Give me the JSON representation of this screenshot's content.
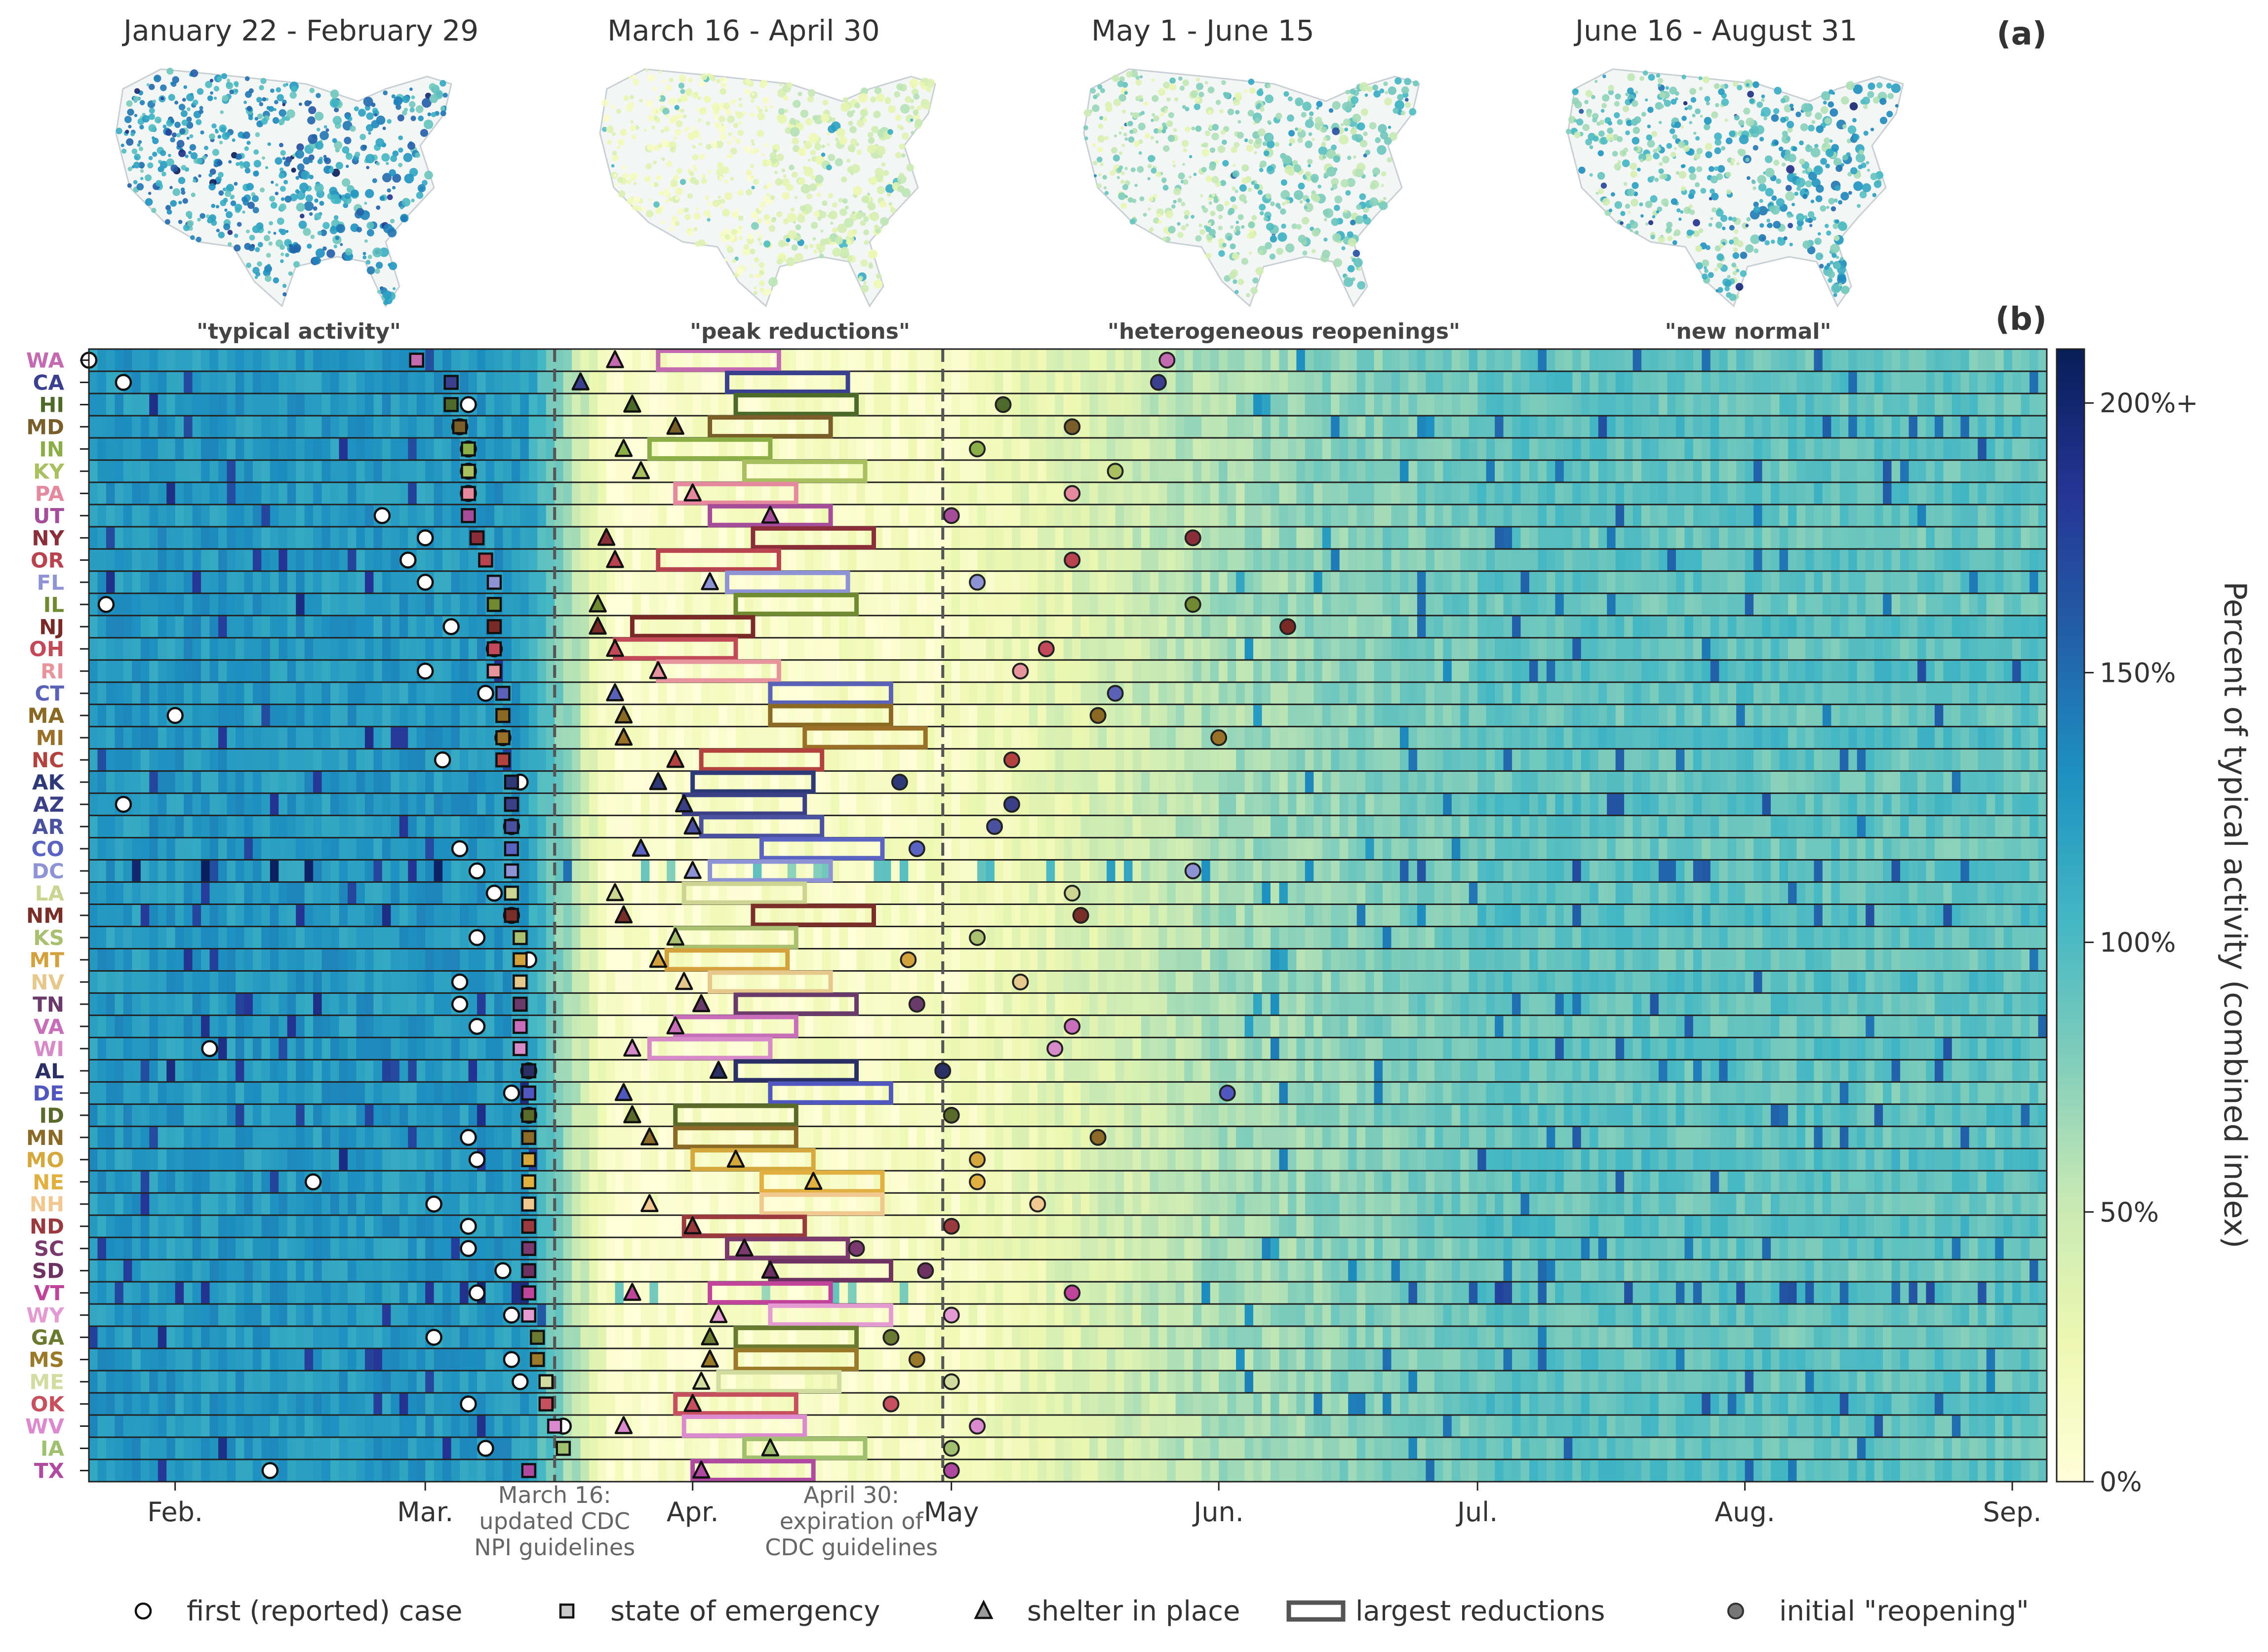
{
  "panel_a": {
    "label": "(a)",
    "maps": [
      {
        "title": "January 22 - February 29",
        "phase": "typical"
      },
      {
        "title": "March 16 - April 30",
        "phase": "peak"
      },
      {
        "title": "May 1 - June 15",
        "phase": "reopen"
      },
      {
        "title": "June 16 - August 31",
        "phase": "normal"
      }
    ]
  },
  "panel_b": {
    "label": "(b)"
  },
  "chart_data": {
    "type": "heatmap",
    "periods": [
      "\"typical activity\"",
      "\"peak reductions\"",
      "\"heterogeneous reopenings\"",
      "\"new normal\""
    ],
    "xlim": [
      "2020-01-22",
      "2020-09-05"
    ],
    "x_ticks": [
      {
        "date": "2020-02-01",
        "label": "Feb."
      },
      {
        "date": "2020-03-01",
        "label": "Mar."
      },
      {
        "date": "2020-04-01",
        "label": "Apr."
      },
      {
        "date": "2020-05-01",
        "label": "May"
      },
      {
        "date": "2020-06-01",
        "label": "Jun."
      },
      {
        "date": "2020-07-01",
        "label": "Jul."
      },
      {
        "date": "2020-08-01",
        "label": "Aug."
      },
      {
        "date": "2020-09-01",
        "label": "Sep."
      }
    ],
    "vlines": [
      {
        "date": "2020-03-16",
        "label": "March 16:\nupdated CDC\nNPI guidelines"
      },
      {
        "date": "2020-04-30",
        "label": "April 30:\nexpiration of\nCDC guidelines"
      }
    ],
    "colorbar": {
      "label": "Percent of typical activity (combined index)",
      "ticks": [
        "0%",
        "50%",
        "100%",
        "150%",
        "200%+"
      ],
      "range": [
        0,
        210
      ],
      "colors": [
        "#ffffd9",
        "#edf8b1",
        "#c7e9b4",
        "#7fcdbb",
        "#41b6c4",
        "#1d91c0",
        "#225ea8",
        "#253494",
        "#081d58"
      ]
    },
    "legend": [
      {
        "marker": "circle",
        "label": "first (reported) case"
      },
      {
        "marker": "square",
        "label": "state of emergency"
      },
      {
        "marker": "triangle",
        "label": "shelter in place"
      },
      {
        "marker": "rect",
        "label": "largest reductions"
      },
      {
        "marker": "dot",
        "label": "initial \"reopening\""
      }
    ],
    "states": [
      {
        "abbr": "WA",
        "color": "#c46ab0",
        "first_case": "2020-01-22",
        "emergency": "2020-02-29",
        "shelter": "2020-03-23",
        "reduction": "2020-03-28",
        "reopen": "2020-05-26"
      },
      {
        "abbr": "CA",
        "color": "#3a3f8f",
        "first_case": "2020-01-26",
        "emergency": "2020-03-04",
        "shelter": "2020-03-19",
        "reduction": "2020-04-05",
        "reopen": "2020-05-25"
      },
      {
        "abbr": "HI",
        "color": "#4d6a2a",
        "first_case": "2020-03-06",
        "emergency": "2020-03-04",
        "shelter": "2020-03-25",
        "reduction": "2020-04-06",
        "reopen": "2020-05-07"
      },
      {
        "abbr": "MD",
        "color": "#7a5e2a",
        "first_case": "2020-03-05",
        "emergency": "2020-03-05",
        "shelter": "2020-03-30",
        "reduction": "2020-04-03",
        "reopen": "2020-05-15"
      },
      {
        "abbr": "IN",
        "color": "#8bae46",
        "first_case": "2020-03-06",
        "emergency": "2020-03-06",
        "shelter": "2020-03-24",
        "reduction": "2020-03-27",
        "reopen": "2020-05-04"
      },
      {
        "abbr": "KY",
        "color": "#a8c060",
        "first_case": "2020-03-06",
        "emergency": "2020-03-06",
        "shelter": "2020-03-26",
        "reduction": "2020-04-07",
        "reopen": "2020-05-20"
      },
      {
        "abbr": "PA",
        "color": "#e58a9e",
        "first_case": "2020-03-06",
        "emergency": "2020-03-06",
        "shelter": "2020-04-01",
        "reduction": "2020-03-30",
        "reopen": "2020-05-15"
      },
      {
        "abbr": "UT",
        "color": "#a64d9a",
        "first_case": "2020-02-25",
        "emergency": "2020-03-06",
        "shelter": "2020-04-10",
        "reduction": "2020-04-03",
        "reopen": "2020-05-01"
      },
      {
        "abbr": "NY",
        "color": "#8a2e3a",
        "first_case": "2020-03-01",
        "emergency": "2020-03-07",
        "shelter": "2020-03-22",
        "reduction": "2020-04-08",
        "reopen": "2020-05-29"
      },
      {
        "abbr": "OR",
        "color": "#b8424e",
        "first_case": "2020-02-28",
        "emergency": "2020-03-08",
        "shelter": "2020-03-23",
        "reduction": "2020-03-28",
        "reopen": "2020-05-15"
      },
      {
        "abbr": "FL",
        "color": "#8e93d6",
        "first_case": "2020-03-01",
        "emergency": "2020-03-09",
        "shelter": "2020-04-03",
        "reduction": "2020-04-05",
        "reopen": "2020-05-04"
      },
      {
        "abbr": "IL",
        "color": "#6f8a30",
        "first_case": "2020-01-24",
        "emergency": "2020-03-09",
        "shelter": "2020-03-21",
        "reduction": "2020-04-06",
        "reopen": "2020-05-29"
      },
      {
        "abbr": "NJ",
        "color": "#7a2a26",
        "first_case": "2020-03-04",
        "emergency": "2020-03-09",
        "shelter": "2020-03-21",
        "reduction": "2020-03-25",
        "reopen": "2020-06-09"
      },
      {
        "abbr": "OH",
        "color": "#c24a58",
        "first_case": "2020-03-09",
        "emergency": "2020-03-09",
        "shelter": "2020-03-23",
        "reduction": "2020-03-23",
        "reopen": "2020-05-12"
      },
      {
        "abbr": "RI",
        "color": "#e7949d",
        "first_case": "2020-03-01",
        "emergency": "2020-03-09",
        "shelter": "2020-03-28",
        "reduction": "2020-03-28",
        "reopen": "2020-05-09"
      },
      {
        "abbr": "CT",
        "color": "#5a62b8",
        "first_case": "2020-03-08",
        "emergency": "2020-03-10",
        "shelter": "2020-03-23",
        "reduction": "2020-04-10",
        "reopen": "2020-05-20"
      },
      {
        "abbr": "MA",
        "color": "#8a6a22",
        "first_case": "2020-02-01",
        "emergency": "2020-03-10",
        "shelter": "2020-03-24",
        "reduction": "2020-04-10",
        "reopen": "2020-05-18"
      },
      {
        "abbr": "MI",
        "color": "#9a7028",
        "first_case": "2020-03-10",
        "emergency": "2020-03-10",
        "shelter": "2020-03-24",
        "reduction": "2020-04-14",
        "reopen": "2020-06-01"
      },
      {
        "abbr": "NC",
        "color": "#b2423e",
        "first_case": "2020-03-03",
        "emergency": "2020-03-10",
        "shelter": "2020-03-30",
        "reduction": "2020-04-02",
        "reopen": "2020-05-08"
      },
      {
        "abbr": "AK",
        "color": "#2e3a78",
        "first_case": "2020-03-12",
        "emergency": "2020-03-11",
        "shelter": "2020-03-28",
        "reduction": "2020-04-01",
        "reopen": "2020-04-25"
      },
      {
        "abbr": "AZ",
        "color": "#3a3f86",
        "first_case": "2020-01-26",
        "emergency": "2020-03-11",
        "shelter": "2020-03-31",
        "reduction": "2020-03-31",
        "reopen": "2020-05-08"
      },
      {
        "abbr": "AR",
        "color": "#4a52a0",
        "first_case": "2020-03-11",
        "emergency": "2020-03-11",
        "shelter": "2020-04-01",
        "reduction": "2020-04-02",
        "reopen": "2020-05-06"
      },
      {
        "abbr": "CO",
        "color": "#5a62c2",
        "first_case": "2020-03-05",
        "emergency": "2020-03-11",
        "shelter": "2020-03-26",
        "reduction": "2020-04-09",
        "reopen": "2020-04-27"
      },
      {
        "abbr": "DC",
        "color": "#8e93d6",
        "first_case": "2020-03-07",
        "emergency": "2020-03-11",
        "shelter": "2020-04-01",
        "reduction": "2020-04-03",
        "reopen": "2020-05-29"
      },
      {
        "abbr": "LA",
        "color": "#cbd490",
        "first_case": "2020-03-09",
        "emergency": "2020-03-11",
        "shelter": "2020-03-23",
        "reduction": "2020-03-31",
        "reopen": "2020-05-15"
      },
      {
        "abbr": "NM",
        "color": "#7a2e2a",
        "first_case": "2020-03-11",
        "emergency": "2020-03-11",
        "shelter": "2020-03-24",
        "reduction": "2020-04-08",
        "reopen": "2020-05-16"
      },
      {
        "abbr": "KS",
        "color": "#a8c070",
        "first_case": "2020-03-07",
        "emergency": "2020-03-12",
        "shelter": "2020-03-30",
        "reduction": "2020-03-30",
        "reopen": "2020-05-04"
      },
      {
        "abbr": "MT",
        "color": "#d4a23c",
        "first_case": "2020-03-13",
        "emergency": "2020-03-12",
        "shelter": "2020-03-28",
        "reduction": "2020-03-29",
        "reopen": "2020-04-26"
      },
      {
        "abbr": "NV",
        "color": "#e6c88c",
        "first_case": "2020-03-05",
        "emergency": "2020-03-12",
        "shelter": "2020-03-31",
        "reduction": "2020-04-03",
        "reopen": "2020-05-09"
      },
      {
        "abbr": "TN",
        "color": "#6a3a6a",
        "first_case": "2020-03-05",
        "emergency": "2020-03-12",
        "shelter": "2020-04-02",
        "reduction": "2020-04-06",
        "reopen": "2020-04-27"
      },
      {
        "abbr": "VA",
        "color": "#c76fb8",
        "first_case": "2020-03-07",
        "emergency": "2020-03-12",
        "shelter": "2020-03-30",
        "reduction": "2020-03-30",
        "reopen": "2020-05-15"
      },
      {
        "abbr": "WI",
        "color": "#d68bc8",
        "first_case": "2020-02-05",
        "emergency": "2020-03-12",
        "shelter": "2020-03-25",
        "reduction": "2020-03-27",
        "reopen": "2020-05-13"
      },
      {
        "abbr": "AL",
        "color": "#2a2f66",
        "first_case": "2020-03-13",
        "emergency": "2020-03-13",
        "shelter": "2020-04-04",
        "reduction": "2020-04-06",
        "reopen": "2020-04-30"
      },
      {
        "abbr": "DE",
        "color": "#5058c0",
        "first_case": "2020-03-11",
        "emergency": "2020-03-13",
        "shelter": "2020-03-24",
        "reduction": "2020-04-10",
        "reopen": "2020-06-02"
      },
      {
        "abbr": "ID",
        "color": "#5a6a2a",
        "first_case": "2020-03-13",
        "emergency": "2020-03-13",
        "shelter": "2020-03-25",
        "reduction": "2020-03-30",
        "reopen": "2020-05-01"
      },
      {
        "abbr": "MN",
        "color": "#8a6a26",
        "first_case": "2020-03-06",
        "emergency": "2020-03-13",
        "shelter": "2020-03-27",
        "reduction": "2020-03-30",
        "reopen": "2020-05-18"
      },
      {
        "abbr": "MO",
        "color": "#d4a83c",
        "first_case": "2020-03-07",
        "emergency": "2020-03-13",
        "shelter": "2020-04-06",
        "reduction": "2020-04-01",
        "reopen": "2020-05-04"
      },
      {
        "abbr": "NE",
        "color": "#e2b040",
        "first_case": "2020-02-17",
        "emergency": "2020-03-13",
        "shelter": "2020-04-15",
        "reduction": "2020-04-09",
        "reopen": "2020-05-04"
      },
      {
        "abbr": "NH",
        "color": "#f0c890",
        "first_case": "2020-03-02",
        "emergency": "2020-03-13",
        "shelter": "2020-03-27",
        "reduction": "2020-04-09",
        "reopen": "2020-05-11"
      },
      {
        "abbr": "ND",
        "color": "#9a3a3e",
        "first_case": "2020-03-06",
        "emergency": "2020-03-13",
        "shelter": "2020-04-01",
        "reduction": "2020-03-31",
        "reopen": "2020-05-01"
      },
      {
        "abbr": "SC",
        "color": "#7a3a6e",
        "first_case": "2020-03-06",
        "emergency": "2020-03-13",
        "shelter": "2020-04-07",
        "reduction": "2020-04-05",
        "reopen": "2020-04-20"
      },
      {
        "abbr": "SD",
        "color": "#6e3262",
        "first_case": "2020-03-10",
        "emergency": "2020-03-13",
        "shelter": "2020-04-10",
        "reduction": "2020-04-10",
        "reopen": "2020-04-28"
      },
      {
        "abbr": "VT",
        "color": "#c0459a",
        "first_case": "2020-03-07",
        "emergency": "2020-03-13",
        "shelter": "2020-03-25",
        "reduction": "2020-04-03",
        "reopen": "2020-05-15"
      },
      {
        "abbr": "WY",
        "color": "#e39bd2",
        "first_case": "2020-03-11",
        "emergency": "2020-03-13",
        "shelter": "2020-04-04",
        "reduction": "2020-04-10",
        "reopen": "2020-05-01"
      },
      {
        "abbr": "GA",
        "color": "#6a7a30",
        "first_case": "2020-03-02",
        "emergency": "2020-03-14",
        "shelter": "2020-04-03",
        "reduction": "2020-04-06",
        "reopen": "2020-04-24"
      },
      {
        "abbr": "MS",
        "color": "#9a7a2a",
        "first_case": "2020-03-11",
        "emergency": "2020-03-14",
        "shelter": "2020-04-03",
        "reduction": "2020-04-06",
        "reopen": "2020-04-27"
      },
      {
        "abbr": "ME",
        "color": "#d3dca0",
        "first_case": "2020-03-12",
        "emergency": "2020-03-15",
        "shelter": "2020-04-02",
        "reduction": "2020-04-04",
        "reopen": "2020-05-01"
      },
      {
        "abbr": "OK",
        "color": "#c6505e",
        "first_case": "2020-03-06",
        "emergency": "2020-03-15",
        "shelter": "2020-04-01",
        "reduction": "2020-03-30",
        "reopen": "2020-04-24"
      },
      {
        "abbr": "WV",
        "color": "#dc8ad0",
        "first_case": "2020-03-17",
        "emergency": "2020-03-16",
        "shelter": "2020-03-24",
        "reduction": "2020-03-31",
        "reopen": "2020-05-04"
      },
      {
        "abbr": "IA",
        "color": "#a0c070",
        "first_case": "2020-03-08",
        "emergency": "2020-03-17",
        "shelter": "2020-04-10",
        "reduction": "2020-04-07",
        "reopen": "2020-05-01"
      },
      {
        "abbr": "TX",
        "color": "#b04aa0",
        "first_case": "2020-02-12",
        "emergency": "2020-03-13",
        "shelter": "2020-04-02",
        "reduction": "2020-04-01",
        "reopen": "2020-05-01"
      }
    ]
  }
}
